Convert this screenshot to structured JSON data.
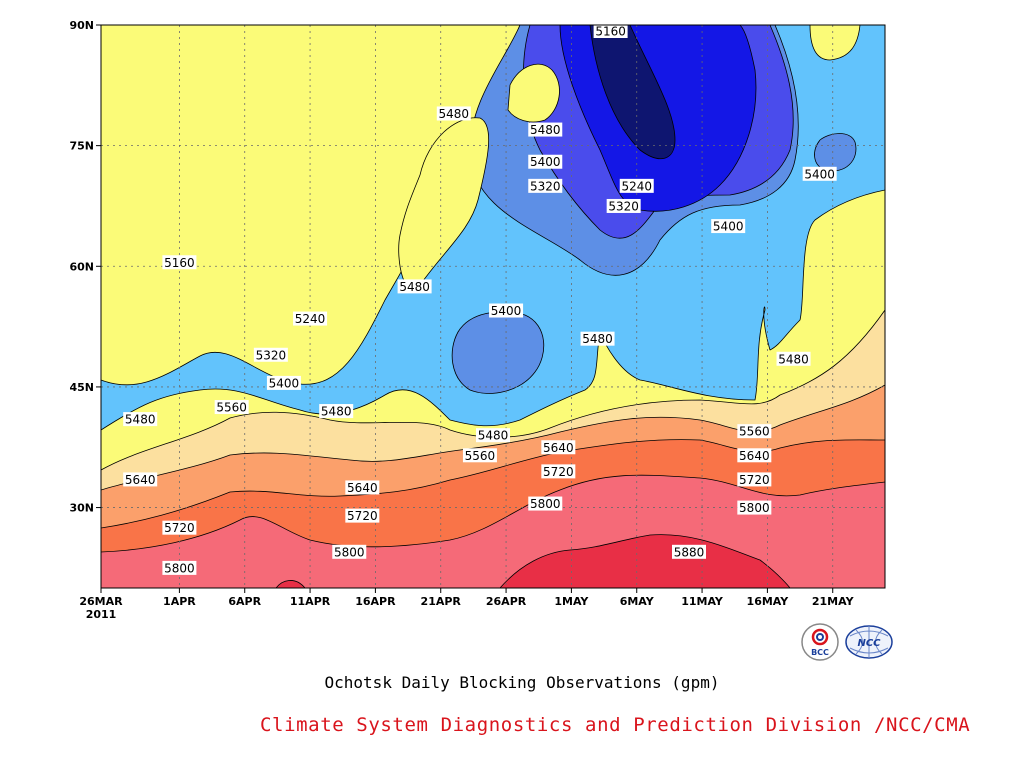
{
  "chart_data": {
    "type": "contour",
    "title": "Ochotsk Daily Blocking Observations (gpm)",
    "credit": "Climate System Diagnostics and Prediction Division /NCC/CMA",
    "xlabel": "",
    "ylabel": "",
    "x_ticks": [
      "26MAR",
      "1APR",
      "6APR",
      "11APR",
      "16APR",
      "21APR",
      "26APR",
      "1MAY",
      "6MAY",
      "11MAY",
      "16MAY",
      "21MAY"
    ],
    "x_year_label": "2011",
    "x_range": [
      "2011-03-26",
      "2011-05-25"
    ],
    "y_ticks": [
      "30N",
      "45N",
      "60N",
      "75N",
      "90N"
    ],
    "y_range": [
      20,
      90
    ],
    "levels": [
      5160,
      5240,
      5320,
      5400,
      5480,
      5560,
      5640,
      5720,
      5800,
      5880
    ],
    "level_colors": [
      "#0e1570",
      "#1417e6",
      "#4a4cec",
      "#5d8fe6",
      "#62c3fc",
      "#fbfb78",
      "#fce09f",
      "#fba06b",
      "#f97448",
      "#f56a78",
      "#e82f46"
    ],
    "contour_labels": [
      {
        "text": "5160",
        "date": "2011-04-01",
        "lat": 60.5
      },
      {
        "text": "5160",
        "date": "2011-05-04",
        "lat": 89.5
      },
      {
        "text": "5240",
        "date": "2011-04-11",
        "lat": 53.5
      },
      {
        "text": "5240",
        "date": "2011-05-06",
        "lat": 70.0
      },
      {
        "text": "5320",
        "date": "2011-04-08",
        "lat": 49.0
      },
      {
        "text": "5320",
        "date": "2011-04-29",
        "lat": 70.0
      },
      {
        "text": "5320",
        "date": "2011-05-05",
        "lat": 67.5
      },
      {
        "text": "5400",
        "date": "2011-04-09",
        "lat": 45.5
      },
      {
        "text": "5400",
        "date": "2011-04-29",
        "lat": 73.0
      },
      {
        "text": "5400",
        "date": "2011-04-26",
        "lat": 54.5
      },
      {
        "text": "5400",
        "date": "2011-05-13",
        "lat": 65.0
      },
      {
        "text": "5400",
        "date": "2011-05-20",
        "lat": 71.5
      },
      {
        "text": "5480",
        "date": "2011-03-29",
        "lat": 41.0
      },
      {
        "text": "5480",
        "date": "2011-04-13",
        "lat": 42.0
      },
      {
        "text": "5480",
        "date": "2011-04-19",
        "lat": 57.5
      },
      {
        "text": "5480",
        "date": "2011-04-22",
        "lat": 79.0
      },
      {
        "text": "5480",
        "date": "2011-04-29",
        "lat": 77.0
      },
      {
        "text": "5480",
        "date": "2011-04-25",
        "lat": 39.0
      },
      {
        "text": "5480",
        "date": "2011-05-03",
        "lat": 51.0
      },
      {
        "text": "5480",
        "date": "2011-05-18",
        "lat": 48.5
      },
      {
        "text": "5560",
        "date": "2011-04-05",
        "lat": 42.5
      },
      {
        "text": "5560",
        "date": "2011-04-24",
        "lat": 36.5
      },
      {
        "text": "5560",
        "date": "2011-05-15",
        "lat": 39.5
      },
      {
        "text": "5640",
        "date": "2011-03-29",
        "lat": 33.5
      },
      {
        "text": "5640",
        "date": "2011-04-15",
        "lat": 32.5
      },
      {
        "text": "5640",
        "date": "2011-04-30",
        "lat": 37.5
      },
      {
        "text": "5640",
        "date": "2011-05-15",
        "lat": 36.5
      },
      {
        "text": "5720",
        "date": "2011-04-01",
        "lat": 27.5
      },
      {
        "text": "5720",
        "date": "2011-04-15",
        "lat": 29.0
      },
      {
        "text": "5720",
        "date": "2011-04-30",
        "lat": 34.5
      },
      {
        "text": "5720",
        "date": "2011-05-15",
        "lat": 33.5
      },
      {
        "text": "5800",
        "date": "2011-04-01",
        "lat": 22.5
      },
      {
        "text": "5800",
        "date": "2011-04-14",
        "lat": 24.5
      },
      {
        "text": "5800",
        "date": "2011-04-29",
        "lat": 30.5
      },
      {
        "text": "5800",
        "date": "2011-05-15",
        "lat": 30.0
      },
      {
        "text": "5880",
        "date": "2011-05-10",
        "lat": 24.5
      }
    ]
  }
}
